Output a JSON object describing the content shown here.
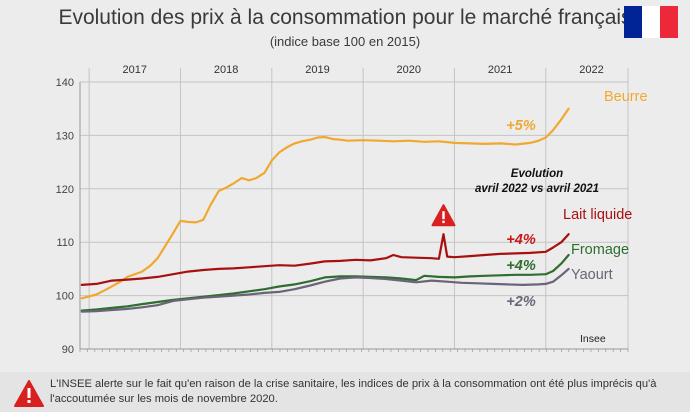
{
  "header": {
    "title": "Evolution des prix à la consommation pour le marché français",
    "subtitle": "(indice base 100 en 2015)"
  },
  "flag_colors": [
    "#002395",
    "#ffffff",
    "#ed2939"
  ],
  "chart_data": {
    "type": "line",
    "x_labels": [
      "2017",
      "2018",
      "2019",
      "2020",
      "2021",
      "2022"
    ],
    "x_range": [
      2016.4,
      2022.4
    ],
    "ylim": [
      90,
      140
    ],
    "yticks": [
      90,
      100,
      110,
      120,
      130,
      140
    ],
    "grid": true,
    "source": "Insee",
    "annotation_title": [
      "Evolution",
      "avril 2022 vs avril 2021"
    ],
    "series": [
      {
        "name": "Beurre",
        "change": "+5%",
        "color": "#f0a830",
        "change_color": "#f0a830",
        "x": [
          2016.42,
          2016.58,
          2016.67,
          2016.83,
          2016.92,
          2017.08,
          2017.17,
          2017.25,
          2017.33,
          2017.42,
          2017.5,
          2017.58,
          2017.67,
          2017.75,
          2017.83,
          2017.92,
          2018.0,
          2018.08,
          2018.17,
          2018.25,
          2018.33,
          2018.42,
          2018.5,
          2018.58,
          2018.67,
          2018.75,
          2018.83,
          2018.92,
          2019.0,
          2019.08,
          2019.17,
          2019.25,
          2019.33,
          2019.5,
          2019.67,
          2019.83,
          2020.0,
          2020.17,
          2020.33,
          2020.5,
          2020.67,
          2020.83,
          2021.0,
          2021.17,
          2021.33,
          2021.42,
          2021.5,
          2021.58,
          2021.67,
          2021.75
        ],
        "values": [
          99.5,
          100.2,
          101.0,
          102.5,
          103.5,
          104.5,
          105.6,
          107.0,
          109.2,
          111.7,
          114.0,
          113.8,
          113.7,
          114.2,
          117.0,
          119.6,
          120.2,
          121.0,
          122.0,
          121.6,
          122.0,
          123.0,
          125.3,
          126.8,
          127.8,
          128.5,
          128.9,
          129.2,
          129.6,
          129.7,
          129.3,
          129.2,
          129.0,
          129.1,
          129.0,
          128.9,
          129.0,
          128.8,
          128.9,
          128.6,
          128.5,
          128.4,
          128.5,
          128.3,
          128.6,
          129.0,
          129.6,
          131.0,
          133.0,
          135.0
        ]
      },
      {
        "name": "Lait liquide",
        "change": "+4%",
        "color": "#a81010",
        "change_color": "#c81818",
        "x": [
          2016.42,
          2016.58,
          2016.75,
          2016.92,
          2017.08,
          2017.25,
          2017.42,
          2017.58,
          2017.75,
          2017.92,
          2018.08,
          2018.25,
          2018.42,
          2018.58,
          2018.75,
          2018.92,
          2019.08,
          2019.25,
          2019.42,
          2019.58,
          2019.75,
          2019.83,
          2019.92,
          2020.08,
          2020.25,
          2020.33,
          2020.38,
          2020.42,
          2020.5,
          2020.67,
          2020.83,
          2021.0,
          2021.17,
          2021.33,
          2021.5,
          2021.58,
          2021.67,
          2021.75
        ],
        "values": [
          102.0,
          102.2,
          102.8,
          103.0,
          103.2,
          103.5,
          104.0,
          104.5,
          104.8,
          105.0,
          105.1,
          105.3,
          105.5,
          105.7,
          105.6,
          106.0,
          106.4,
          106.5,
          106.7,
          106.6,
          107.0,
          107.6,
          107.2,
          107.1,
          107.0,
          106.9,
          111.5,
          107.3,
          107.2,
          107.4,
          107.6,
          107.8,
          107.9,
          108.0,
          108.2,
          109.0,
          110.0,
          111.5
        ]
      },
      {
        "name": "Fromage",
        "change": "+4%",
        "color": "#2e6e2e",
        "change_color": "#2e6e2e",
        "x": [
          2016.42,
          2016.58,
          2016.75,
          2016.92,
          2017.08,
          2017.25,
          2017.42,
          2017.58,
          2017.75,
          2017.92,
          2018.08,
          2018.25,
          2018.42,
          2018.58,
          2018.75,
          2018.92,
          2019.08,
          2019.25,
          2019.42,
          2019.58,
          2019.75,
          2019.92,
          2020.08,
          2020.17,
          2020.33,
          2020.5,
          2020.67,
          2020.83,
          2021.0,
          2021.17,
          2021.33,
          2021.5,
          2021.58,
          2021.67,
          2021.75
        ],
        "values": [
          97.2,
          97.4,
          97.7,
          98.0,
          98.4,
          98.8,
          99.2,
          99.5,
          99.8,
          100.1,
          100.4,
          100.8,
          101.2,
          101.7,
          102.1,
          102.7,
          103.4,
          103.6,
          103.6,
          103.5,
          103.4,
          103.2,
          102.9,
          103.7,
          103.5,
          103.4,
          103.6,
          103.7,
          103.8,
          103.9,
          103.9,
          104.0,
          104.6,
          106.0,
          107.6
        ]
      },
      {
        "name": "Yaourt",
        "change": "+2%",
        "color": "#6a6478",
        "change_color": "#6a6478",
        "x": [
          2016.42,
          2016.58,
          2016.75,
          2016.92,
          2017.08,
          2017.25,
          2017.42,
          2017.58,
          2017.75,
          2017.92,
          2018.08,
          2018.25,
          2018.42,
          2018.58,
          2018.75,
          2018.92,
          2019.08,
          2019.25,
          2019.42,
          2019.58,
          2019.75,
          2019.92,
          2020.08,
          2020.25,
          2020.42,
          2020.58,
          2020.75,
          2020.92,
          2021.08,
          2021.25,
          2021.42,
          2021.5,
          2021.58,
          2021.67,
          2021.75
        ],
        "values": [
          97.0,
          97.1,
          97.3,
          97.5,
          97.8,
          98.2,
          99.0,
          99.3,
          99.6,
          99.8,
          100.0,
          100.2,
          100.5,
          100.7,
          101.2,
          101.9,
          102.6,
          103.2,
          103.4,
          103.3,
          103.1,
          102.8,
          102.5,
          102.8,
          102.6,
          102.4,
          102.3,
          102.2,
          102.1,
          102.0,
          102.1,
          102.2,
          102.6,
          103.8,
          105.0
        ]
      }
    ]
  },
  "footer": {
    "text": "L'INSEE alerte sur le fait qu'en raison de la crise sanitaire, les indices de prix à la consommation ont été plus imprécis qu'à l'accoutumée sur les mois de novembre 2020."
  }
}
